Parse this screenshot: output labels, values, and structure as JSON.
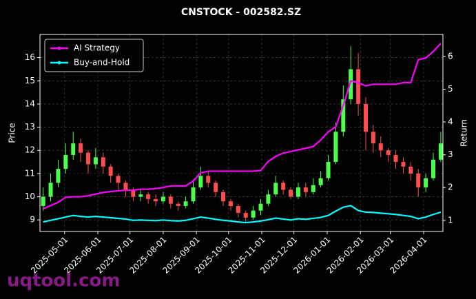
{
  "chart_data": {
    "type": "candlestick",
    "title": "CNSTOCK - 002582.SZ",
    "ylabel": "Price",
    "y2label": "Return",
    "watermark": "uqtool.com",
    "x": [
      "2025-04-11",
      "2025-04-18",
      "2025-04-25",
      "2025-05-02",
      "2025-05-09",
      "2025-05-16",
      "2025-05-23",
      "2025-05-30",
      "2025-06-06",
      "2025-06-13",
      "2025-06-20",
      "2025-06-27",
      "2025-07-04",
      "2025-07-11",
      "2025-07-18",
      "2025-07-25",
      "2025-08-01",
      "2025-08-08",
      "2025-08-15",
      "2025-08-22",
      "2025-08-29",
      "2025-09-05",
      "2025-09-12",
      "2025-09-19",
      "2025-09-26",
      "2025-10-03",
      "2025-10-10",
      "2025-10-17",
      "2025-10-24",
      "2025-10-31",
      "2025-11-07",
      "2025-11-14",
      "2025-11-21",
      "2025-11-28",
      "2025-12-05",
      "2025-12-12",
      "2025-12-19",
      "2025-12-26",
      "2026-01-02",
      "2026-01-09",
      "2026-01-16",
      "2026-01-23",
      "2026-01-30",
      "2026-02-06",
      "2026-02-13",
      "2026-02-20",
      "2026-02-27",
      "2026-03-06",
      "2026-03-13",
      "2026-03-20",
      "2026-03-27",
      "2026-04-03",
      "2026-04-10",
      "2026-04-17"
    ],
    "open": [
      9.6,
      10.0,
      10.6,
      11.2,
      11.8,
      12.3,
      11.9,
      11.4,
      11.7,
      11.3,
      10.9,
      10.6,
      10.3,
      10.0,
      10.1,
      9.9,
      9.8,
      10.0,
      9.7,
      9.6,
      9.8,
      10.4,
      10.9,
      10.6,
      10.2,
      9.8,
      9.6,
      9.3,
      9.1,
      9.4,
      9.7,
      10.1,
      10.6,
      10.3,
      10.0,
      10.4,
      10.2,
      10.5,
      10.8,
      11.5,
      12.8,
      14.2,
      15.5,
      14.0,
      12.8,
      12.3,
      12.0,
      11.8,
      11.5,
      11.3,
      11.0,
      10.4,
      10.8,
      11.6
    ],
    "high": [
      10.4,
      11.0,
      11.6,
      12.3,
      12.8,
      12.5,
      12.0,
      12.1,
      11.9,
      11.4,
      11.0,
      10.7,
      10.4,
      10.3,
      10.2,
      10.1,
      10.2,
      10.1,
      9.8,
      10.0,
      10.7,
      11.3,
      11.1,
      10.7,
      10.3,
      9.9,
      9.7,
      9.4,
      9.6,
      9.9,
      10.3,
      10.9,
      10.7,
      10.4,
      10.6,
      10.6,
      10.8,
      11.1,
      11.8,
      13.2,
      14.8,
      16.5,
      16.2,
      14.3,
      13.1,
      12.6,
      12.1,
      12.0,
      11.7,
      11.5,
      11.2,
      11.0,
      11.9,
      12.8
    ],
    "low": [
      9.4,
      9.8,
      10.4,
      11.0,
      11.6,
      11.5,
      11.0,
      11.2,
      11.0,
      10.6,
      10.3,
      10.0,
      9.8,
      9.8,
      9.7,
      9.6,
      9.7,
      9.5,
      9.4,
      9.5,
      9.7,
      10.3,
      10.4,
      10.0,
      9.6,
      9.4,
      9.1,
      8.9,
      9.0,
      9.2,
      9.6,
      10.0,
      10.1,
      9.9,
      9.9,
      10.0,
      10.1,
      10.4,
      10.7,
      11.4,
      12.6,
      14.0,
      13.5,
      12.0,
      11.9,
      11.7,
      11.5,
      11.2,
      11.0,
      10.7,
      10.0,
      10.2,
      10.7,
      11.5
    ],
    "close": [
      10.0,
      10.6,
      11.2,
      11.8,
      12.3,
      11.9,
      11.4,
      11.7,
      11.3,
      10.9,
      10.6,
      10.3,
      10.0,
      10.1,
      9.9,
      9.8,
      10.0,
      9.7,
      9.6,
      9.8,
      10.4,
      10.9,
      10.6,
      10.2,
      9.8,
      9.6,
      9.3,
      9.1,
      9.4,
      9.7,
      10.1,
      10.6,
      10.3,
      10.0,
      10.4,
      10.2,
      10.5,
      10.8,
      11.5,
      12.8,
      14.2,
      15.5,
      14.0,
      12.8,
      12.3,
      12.0,
      11.8,
      11.5,
      11.3,
      11.0,
      10.4,
      10.8,
      11.6,
      12.3
    ],
    "up_color": "#4dff4d",
    "down_color": "#ff4d4d",
    "series": [
      {
        "name": "AI Strategy",
        "color": "#ff00ff",
        "axis": "y2",
        "values": [
          1.35,
          1.45,
          1.55,
          1.7,
          1.72,
          1.72,
          1.75,
          1.8,
          1.85,
          1.88,
          1.9,
          1.92,
          1.92,
          1.95,
          1.95,
          1.97,
          2.0,
          2.05,
          2.05,
          2.05,
          2.2,
          2.45,
          2.5,
          2.5,
          2.5,
          2.5,
          2.5,
          2.5,
          2.5,
          2.52,
          2.8,
          2.95,
          3.05,
          3.1,
          3.15,
          3.2,
          3.25,
          3.45,
          3.7,
          3.85,
          4.5,
          5.25,
          5.2,
          5.1,
          5.15,
          5.15,
          5.15,
          5.15,
          5.2,
          5.2,
          5.9,
          5.95,
          6.15,
          6.4
        ]
      },
      {
        "name": "Buy-and-Hold",
        "color": "#00ffff",
        "axis": "y2",
        "values": [
          0.95,
          1.0,
          1.05,
          1.1,
          1.15,
          1.12,
          1.1,
          1.12,
          1.1,
          1.08,
          1.06,
          1.04,
          1.0,
          1.01,
          1.0,
          0.99,
          1.01,
          0.99,
          0.98,
          1.0,
          1.05,
          1.1,
          1.07,
          1.03,
          1.0,
          0.98,
          0.95,
          0.93,
          0.95,
          0.98,
          1.02,
          1.07,
          1.04,
          1.01,
          1.05,
          1.03,
          1.06,
          1.09,
          1.15,
          1.28,
          1.4,
          1.45,
          1.3,
          1.25,
          1.24,
          1.22,
          1.2,
          1.18,
          1.15,
          1.12,
          1.05,
          1.1,
          1.18,
          1.25
        ]
      }
    ],
    "xlim": [
      "2025-04-08",
      "2026-04-19"
    ],
    "xticks": [
      "2025-05-01",
      "2025-06-01",
      "2025-07-01",
      "2025-08-01",
      "2025-09-01",
      "2025-10-01",
      "2025-11-01",
      "2025-12-01",
      "2026-01-01",
      "2026-02-01",
      "2026-03-01",
      "2026-04-01"
    ],
    "ylim": [
      8.5,
      17.0
    ],
    "yticks": [
      9,
      10,
      11,
      12,
      13,
      14,
      15,
      16
    ],
    "y2lim": [
      0.66,
      6.67
    ],
    "y2ticks": [
      1,
      2,
      3,
      4,
      5,
      6
    ],
    "grid": true,
    "legend": "upper left"
  }
}
